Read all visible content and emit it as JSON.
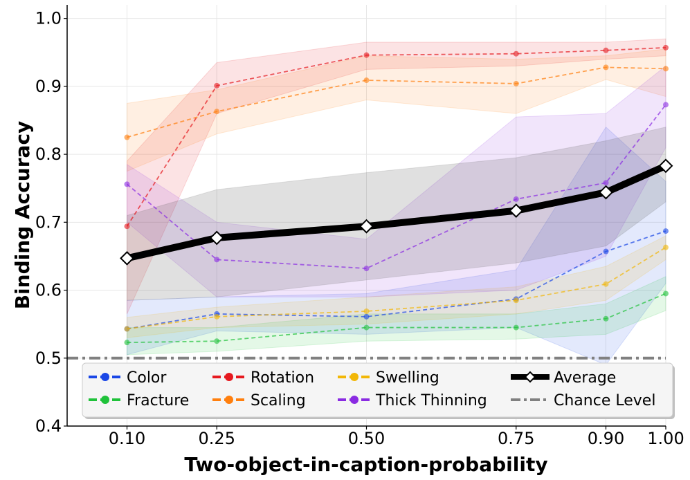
{
  "chart_data": {
    "type": "line",
    "xlabel": "Two-object-in-caption-probability",
    "ylabel": "Binding Accuracy",
    "x": [
      0.1,
      0.25,
      0.5,
      0.75,
      0.9,
      1.0
    ],
    "x_tick_labels": [
      "0.10",
      "0.25",
      "0.50",
      "0.75",
      "0.90",
      "1.00"
    ],
    "xlim": [
      0.0,
      1.0
    ],
    "ylim": [
      0.4,
      1.02
    ],
    "y_ticks": [
      0.4,
      0.5,
      0.6,
      0.7,
      0.8,
      0.9,
      1.0
    ],
    "y_tick_labels": [
      "0.4",
      "0.5",
      "0.6",
      "0.7",
      "0.8",
      "0.9",
      "1.0"
    ],
    "grid": true,
    "legend_position": "bottom",
    "series": [
      {
        "name": "Color",
        "color": "#1a47e6",
        "style": "dashed-marker",
        "values": [
          0.543,
          0.565,
          0.561,
          0.587,
          0.657,
          0.687
        ],
        "lower": [
          0.505,
          0.54,
          0.535,
          0.545,
          0.49,
          0.61
        ],
        "upper": [
          0.585,
          0.59,
          0.595,
          0.63,
          0.84,
          0.76
        ]
      },
      {
        "name": "Fracture",
        "color": "#1fc23a",
        "style": "dashed-marker",
        "values": [
          0.523,
          0.525,
          0.545,
          0.545,
          0.558,
          0.595
        ],
        "lower": [
          0.505,
          0.51,
          0.525,
          0.528,
          0.535,
          0.57
        ],
        "upper": [
          0.545,
          0.545,
          0.565,
          0.565,
          0.58,
          0.62
        ]
      },
      {
        "name": "Rotation",
        "color": "#e6191f",
        "style": "dashed-marker",
        "values": [
          0.694,
          0.901,
          0.946,
          0.948,
          0.953,
          0.957
        ],
        "lower": [
          0.565,
          0.86,
          0.925,
          0.93,
          0.94,
          0.945
        ],
        "upper": [
          0.79,
          0.935,
          0.965,
          0.965,
          0.965,
          0.97
        ]
      },
      {
        "name": "Scaling",
        "color": "#ff7f0e",
        "style": "dashed-marker",
        "values": [
          0.825,
          0.863,
          0.909,
          0.904,
          0.928,
          0.926
        ],
        "lower": [
          0.775,
          0.83,
          0.88,
          0.86,
          0.91,
          0.885
        ],
        "upper": [
          0.875,
          0.895,
          0.945,
          0.94,
          0.945,
          0.955
        ]
      },
      {
        "name": "Swelling",
        "color": "#f2b707",
        "style": "dashed-marker",
        "values": [
          0.543,
          0.561,
          0.569,
          0.585,
          0.609,
          0.663
        ],
        "lower": [
          0.53,
          0.545,
          0.55,
          0.565,
          0.585,
          0.645
        ],
        "upper": [
          0.56,
          0.575,
          0.59,
          0.605,
          0.635,
          0.68
        ]
      },
      {
        "name": "Thick Thinning",
        "color": "#8a2be2",
        "style": "dashed-marker",
        "values": [
          0.756,
          0.645,
          0.632,
          0.734,
          0.758,
          0.873
        ],
        "lower": [
          0.7,
          0.59,
          0.59,
          0.6,
          0.65,
          0.81
        ],
        "upper": [
          0.785,
          0.7,
          0.675,
          0.855,
          0.86,
          0.93
        ]
      },
      {
        "name": "Average",
        "color": "#000000",
        "style": "thick-diamond",
        "values": [
          0.647,
          0.677,
          0.694,
          0.717,
          0.744,
          0.783
        ],
        "lower": [
          0.585,
          0.59,
          0.615,
          0.64,
          0.665,
          0.73
        ],
        "upper": [
          0.71,
          0.748,
          0.773,
          0.795,
          0.82,
          0.84
        ]
      },
      {
        "name": "Chance Level",
        "color": "#808080",
        "style": "dashdot",
        "values": [
          0.5,
          0.5,
          0.5,
          0.5,
          0.5,
          0.5
        ]
      }
    ]
  }
}
